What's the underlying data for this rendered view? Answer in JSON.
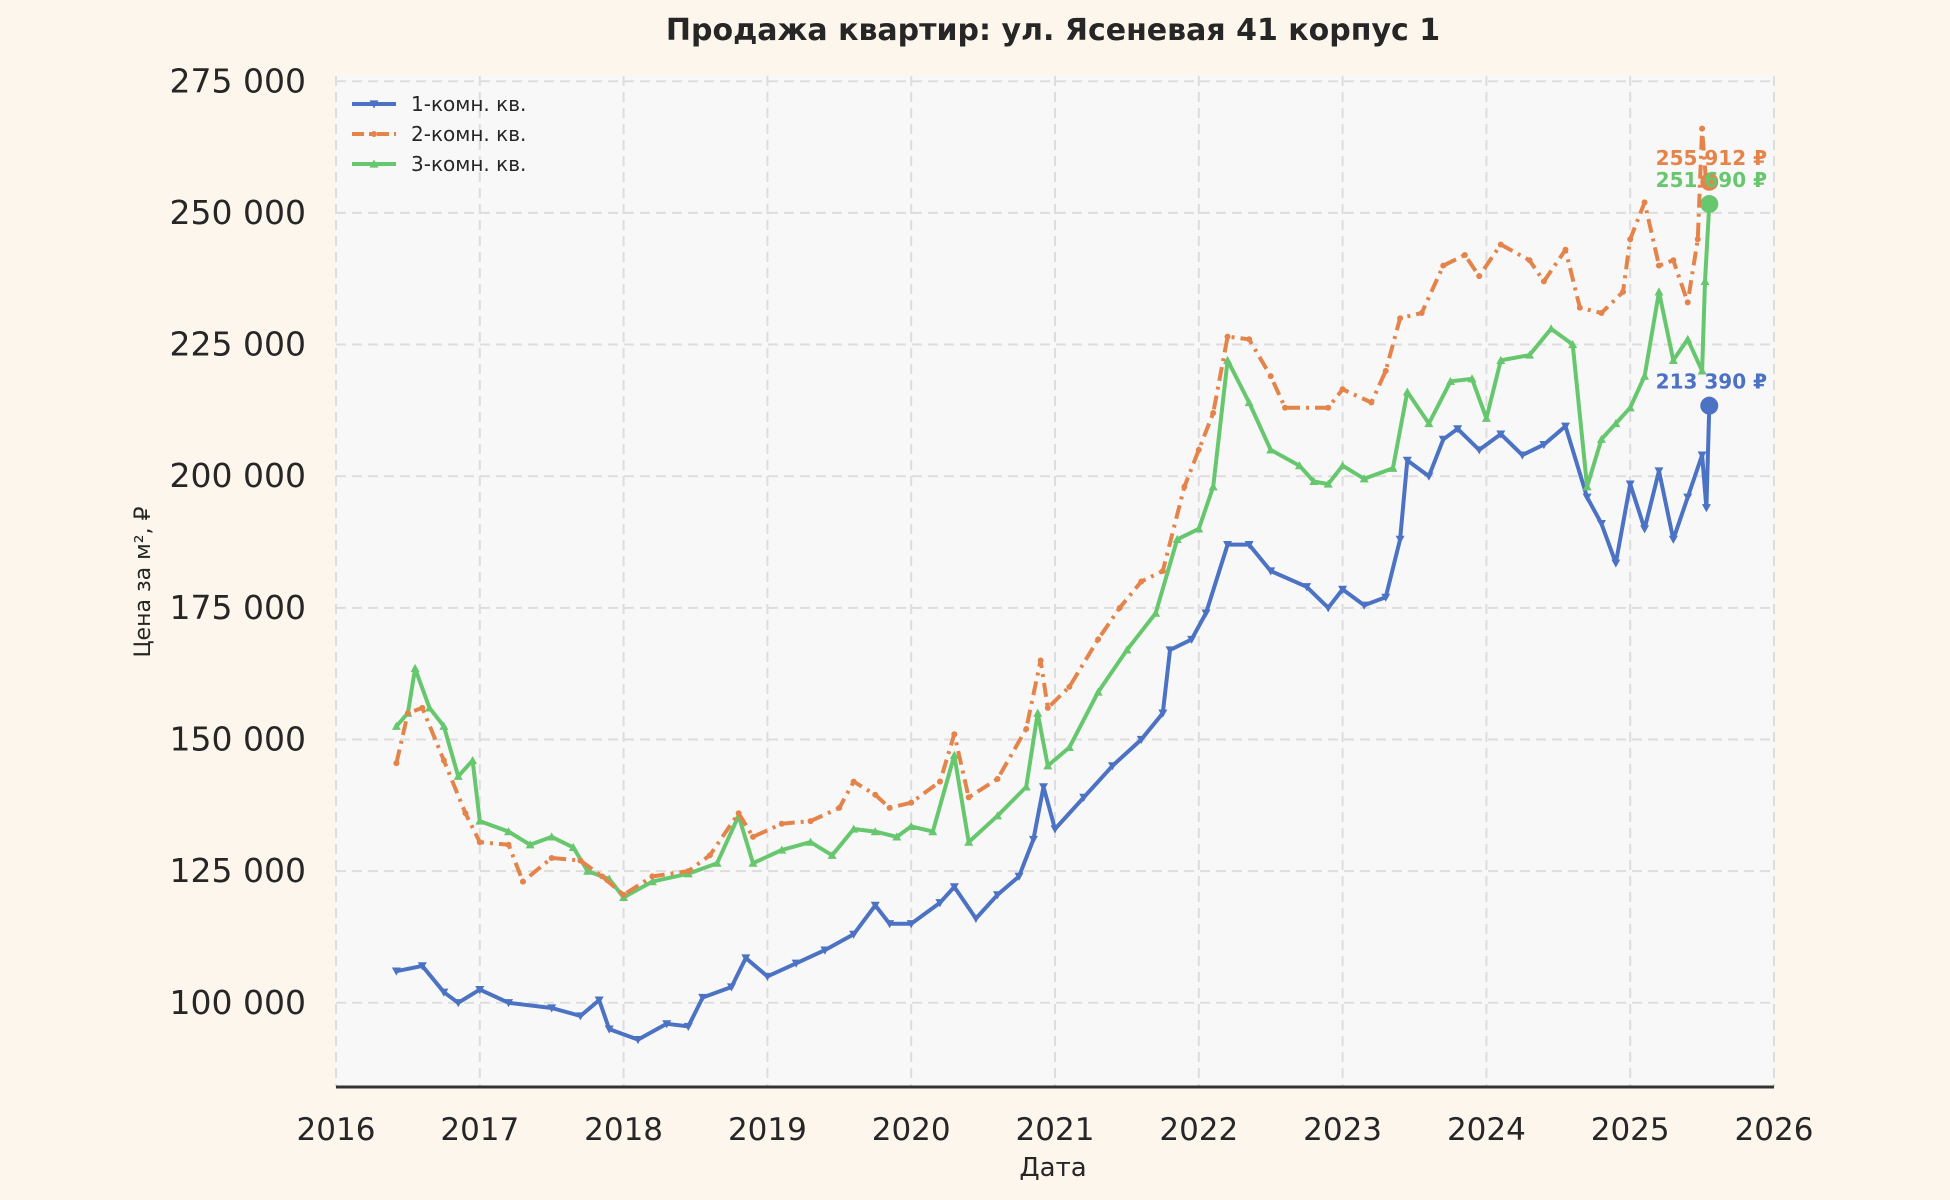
{
  "colors": {
    "page_bg": "#fdf6ec",
    "plot_bg": "#f8f8f8",
    "grid": "#dddddd",
    "axis": "#333333",
    "text": "#262626"
  },
  "chart_data": {
    "type": "line",
    "title": "Продажа квартир: ул. Ясеневая 41 корпус 1",
    "xlabel": "Дата",
    "ylabel": "Цена за м², ₽",
    "xlim": [
      2016,
      2026
    ],
    "ylim": [
      84000,
      276000
    ],
    "x_ticks": [
      2016,
      2017,
      2018,
      2019,
      2020,
      2021,
      2022,
      2023,
      2024,
      2025,
      2026
    ],
    "x_tick_labels": [
      "2016",
      "2017",
      "2018",
      "2019",
      "2020",
      "2021",
      "2022",
      "2023",
      "2024",
      "2025",
      "2026"
    ],
    "y_ticks": [
      100000,
      125000,
      150000,
      175000,
      200000,
      225000,
      250000,
      275000
    ],
    "y_tick_labels": [
      "100 000",
      "125 000",
      "150 000",
      "175 000",
      "200 000",
      "225 000",
      "250 000",
      "275 000"
    ],
    "grid": true,
    "legend": "top-left",
    "series": [
      {
        "name": "1-комн. кв.",
        "color": "#4c72c4",
        "dash": "solid",
        "marker": "triangle-down",
        "last_value_label": "213 390 ₽",
        "last_point": [
          2025.55,
          213390
        ],
        "points": [
          [
            2016.42,
            106000
          ],
          [
            2016.6,
            107000
          ],
          [
            2016.75,
            102000
          ],
          [
            2016.85,
            100000
          ],
          [
            2017.0,
            102500
          ],
          [
            2017.2,
            100000
          ],
          [
            2017.5,
            99000
          ],
          [
            2017.7,
            97500
          ],
          [
            2017.83,
            100500
          ],
          [
            2017.9,
            95000
          ],
          [
            2018.1,
            93000
          ],
          [
            2018.3,
            96000
          ],
          [
            2018.45,
            95500
          ],
          [
            2018.55,
            101000
          ],
          [
            2018.75,
            103000
          ],
          [
            2018.85,
            108500
          ],
          [
            2019.0,
            105000
          ],
          [
            2019.2,
            107500
          ],
          [
            2019.4,
            110000
          ],
          [
            2019.6,
            113000
          ],
          [
            2019.75,
            118500
          ],
          [
            2019.85,
            115000
          ],
          [
            2020.0,
            115000
          ],
          [
            2020.2,
            119000
          ],
          [
            2020.3,
            122000
          ],
          [
            2020.45,
            116000
          ],
          [
            2020.6,
            120500
          ],
          [
            2020.75,
            124000
          ],
          [
            2020.85,
            131000
          ],
          [
            2020.92,
            141000
          ],
          [
            2021.0,
            133000
          ],
          [
            2021.2,
            139000
          ],
          [
            2021.4,
            145000
          ],
          [
            2021.6,
            150000
          ],
          [
            2021.75,
            155000
          ],
          [
            2021.8,
            167000
          ],
          [
            2021.95,
            169000
          ],
          [
            2022.05,
            174000
          ],
          [
            2022.2,
            187000
          ],
          [
            2022.35,
            187000
          ],
          [
            2022.5,
            182000
          ],
          [
            2022.75,
            179000
          ],
          [
            2022.9,
            175000
          ],
          [
            2023.0,
            178500
          ],
          [
            2023.15,
            175500
          ],
          [
            2023.3,
            177000
          ],
          [
            2023.4,
            188000
          ],
          [
            2023.45,
            203000
          ],
          [
            2023.6,
            200000
          ],
          [
            2023.7,
            207000
          ],
          [
            2023.8,
            209000
          ],
          [
            2023.95,
            205000
          ],
          [
            2024.1,
            208000
          ],
          [
            2024.25,
            204000
          ],
          [
            2024.4,
            206000
          ],
          [
            2024.55,
            209500
          ],
          [
            2024.7,
            196000
          ],
          [
            2024.8,
            191000
          ],
          [
            2024.9,
            183500
          ],
          [
            2025.0,
            198500
          ],
          [
            2025.1,
            190000
          ],
          [
            2025.2,
            201000
          ],
          [
            2025.3,
            188000
          ],
          [
            2025.4,
            196000
          ],
          [
            2025.5,
            204000
          ],
          [
            2025.53,
            194000
          ],
          [
            2025.55,
            213390
          ]
        ]
      },
      {
        "name": "2-комн. кв.",
        "color": "#e4844a",
        "dash": "dashdot",
        "marker": "dot",
        "last_value_label": "255 912 ₽",
        "last_point": [
          2025.55,
          255912
        ],
        "points": [
          [
            2016.42,
            145500
          ],
          [
            2016.5,
            155000
          ],
          [
            2016.6,
            156000
          ],
          [
            2016.75,
            146000
          ],
          [
            2016.9,
            136000
          ],
          [
            2017.0,
            130500
          ],
          [
            2017.2,
            130000
          ],
          [
            2017.3,
            123000
          ],
          [
            2017.5,
            127500
          ],
          [
            2017.7,
            127000
          ],
          [
            2017.85,
            124000
          ],
          [
            2018.0,
            120500
          ],
          [
            2018.2,
            124000
          ],
          [
            2018.45,
            125000
          ],
          [
            2018.6,
            128000
          ],
          [
            2018.8,
            136000
          ],
          [
            2018.9,
            131500
          ],
          [
            2019.1,
            134000
          ],
          [
            2019.3,
            134500
          ],
          [
            2019.5,
            137000
          ],
          [
            2019.6,
            142000
          ],
          [
            2019.75,
            139500
          ],
          [
            2019.85,
            137000
          ],
          [
            2020.0,
            138000
          ],
          [
            2020.2,
            142000
          ],
          [
            2020.3,
            151000
          ],
          [
            2020.4,
            139000
          ],
          [
            2020.6,
            142500
          ],
          [
            2020.8,
            152000
          ],
          [
            2020.9,
            165000
          ],
          [
            2020.95,
            156000
          ],
          [
            2021.1,
            160000
          ],
          [
            2021.3,
            169000
          ],
          [
            2021.45,
            175000
          ],
          [
            2021.6,
            180000
          ],
          [
            2021.75,
            182000
          ],
          [
            2021.9,
            198000
          ],
          [
            2022.0,
            205000
          ],
          [
            2022.1,
            212000
          ],
          [
            2022.2,
            226500
          ],
          [
            2022.35,
            226000
          ],
          [
            2022.5,
            219000
          ],
          [
            2022.6,
            213000
          ],
          [
            2022.9,
            213000
          ],
          [
            2023.0,
            216500
          ],
          [
            2023.2,
            214000
          ],
          [
            2023.3,
            220000
          ],
          [
            2023.4,
            230000
          ],
          [
            2023.55,
            231000
          ],
          [
            2023.7,
            240000
          ],
          [
            2023.85,
            242000
          ],
          [
            2023.95,
            238000
          ],
          [
            2024.1,
            244000
          ],
          [
            2024.3,
            241000
          ],
          [
            2024.4,
            237000
          ],
          [
            2024.55,
            243000
          ],
          [
            2024.65,
            232000
          ],
          [
            2024.8,
            231000
          ],
          [
            2024.95,
            235000
          ],
          [
            2025.0,
            245000
          ],
          [
            2025.1,
            252000
          ],
          [
            2025.2,
            240000
          ],
          [
            2025.3,
            241000
          ],
          [
            2025.4,
            233000
          ],
          [
            2025.47,
            245000
          ],
          [
            2025.5,
            266000
          ],
          [
            2025.53,
            255000
          ],
          [
            2025.55,
            255912
          ]
        ]
      },
      {
        "name": "3-комн. кв.",
        "color": "#67c76e",
        "dash": "solid",
        "marker": "triangle-up",
        "last_value_label": "251 690 ₽",
        "last_point": [
          2025.55,
          251690
        ],
        "points": [
          [
            2016.42,
            152500
          ],
          [
            2016.5,
            155000
          ],
          [
            2016.55,
            163500
          ],
          [
            2016.65,
            156000
          ],
          [
            2016.75,
            152500
          ],
          [
            2016.85,
            143000
          ],
          [
            2016.95,
            146000
          ],
          [
            2017.0,
            134500
          ],
          [
            2017.2,
            132500
          ],
          [
            2017.35,
            130000
          ],
          [
            2017.5,
            131500
          ],
          [
            2017.65,
            129500
          ],
          [
            2017.75,
            125000
          ],
          [
            2017.9,
            123500
          ],
          [
            2018.0,
            120000
          ],
          [
            2018.2,
            123000
          ],
          [
            2018.45,
            124500
          ],
          [
            2018.65,
            126500
          ],
          [
            2018.8,
            135500
          ],
          [
            2018.9,
            126500
          ],
          [
            2019.1,
            129000
          ],
          [
            2019.3,
            130500
          ],
          [
            2019.45,
            128000
          ],
          [
            2019.6,
            133000
          ],
          [
            2019.75,
            132500
          ],
          [
            2019.9,
            131500
          ],
          [
            2020.0,
            133500
          ],
          [
            2020.15,
            132500
          ],
          [
            2020.3,
            147000
          ],
          [
            2020.4,
            130500
          ],
          [
            2020.6,
            135500
          ],
          [
            2020.8,
            141000
          ],
          [
            2020.88,
            155000
          ],
          [
            2020.95,
            145000
          ],
          [
            2021.1,
            148500
          ],
          [
            2021.3,
            159000
          ],
          [
            2021.5,
            167000
          ],
          [
            2021.7,
            174000
          ],
          [
            2021.85,
            188000
          ],
          [
            2022.0,
            190000
          ],
          [
            2022.1,
            198000
          ],
          [
            2022.2,
            222000
          ],
          [
            2022.35,
            214000
          ],
          [
            2022.5,
            205000
          ],
          [
            2022.7,
            202000
          ],
          [
            2022.8,
            199000
          ],
          [
            2022.9,
            198500
          ],
          [
            2023.0,
            202000
          ],
          [
            2023.15,
            199500
          ],
          [
            2023.35,
            201500
          ],
          [
            2023.45,
            216000
          ],
          [
            2023.6,
            210000
          ],
          [
            2023.75,
            218000
          ],
          [
            2023.9,
            218500
          ],
          [
            2024.0,
            211000
          ],
          [
            2024.1,
            222000
          ],
          [
            2024.3,
            223000
          ],
          [
            2024.45,
            228000
          ],
          [
            2024.6,
            225000
          ],
          [
            2024.7,
            198000
          ],
          [
            2024.8,
            207000
          ],
          [
            2024.9,
            210000
          ],
          [
            2025.0,
            213000
          ],
          [
            2025.1,
            219000
          ],
          [
            2025.2,
            235000
          ],
          [
            2025.3,
            222000
          ],
          [
            2025.4,
            226000
          ],
          [
            2025.5,
            220000
          ],
          [
            2025.52,
            237000
          ],
          [
            2025.55,
            251690
          ]
        ]
      }
    ]
  }
}
